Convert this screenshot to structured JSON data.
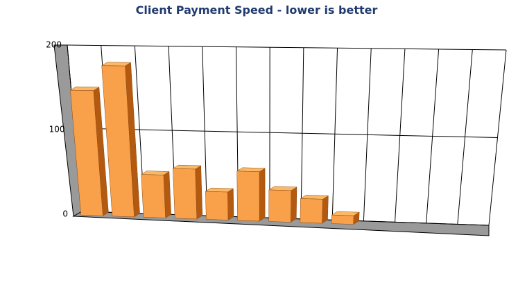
{
  "chart_data": {
    "type": "bar3d",
    "title": "Client Payment Speed - lower is better",
    "categories": [
      null,
      null,
      null,
      null,
      null,
      null,
      null,
      null,
      null,
      null,
      null,
      null,
      null
    ],
    "values": [
      150,
      180,
      51,
      59,
      33,
      58,
      37,
      28,
      10,
      null,
      null,
      null,
      null
    ],
    "color": "#f9a04a",
    "ylim": [
      0,
      200
    ],
    "yticks": [
      0,
      100,
      200
    ],
    "grid": true
  }
}
